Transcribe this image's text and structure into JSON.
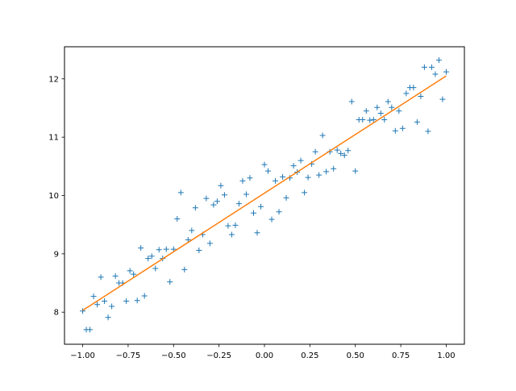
{
  "chart_data": {
    "type": "scatter",
    "title": "",
    "xlabel": "",
    "ylabel": "",
    "xlim": [
      -1.1,
      1.1
    ],
    "ylim": [
      7.45,
      12.55
    ],
    "xticks": [
      -1.0,
      -0.75,
      -0.5,
      -0.25,
      0.0,
      0.25,
      0.5,
      0.75,
      1.0
    ],
    "xtick_labels": [
      "−1.00",
      "−0.75",
      "−0.50",
      "−0.25",
      "0.00",
      "0.25",
      "0.50",
      "0.75",
      "1.00"
    ],
    "yticks": [
      8,
      9,
      10,
      11,
      12
    ],
    "ytick_labels": [
      "8",
      "9",
      "10",
      "11",
      "12"
    ],
    "grid": false,
    "legend": "none",
    "series": [
      {
        "kind": "points",
        "marker": "+",
        "color": "#1f77b4",
        "x": [
          -1.0,
          -0.98,
          -0.96,
          -0.94,
          -0.92,
          -0.9,
          -0.88,
          -0.86,
          -0.84,
          -0.82,
          -0.8,
          -0.78,
          -0.76,
          -0.74,
          -0.72,
          -0.7,
          -0.68,
          -0.66,
          -0.64,
          -0.62,
          -0.6,
          -0.58,
          -0.56,
          -0.54,
          -0.52,
          -0.5,
          -0.48,
          -0.46,
          -0.44,
          -0.42,
          -0.4,
          -0.38,
          -0.36,
          -0.34,
          -0.32,
          -0.3,
          -0.28,
          -0.26,
          -0.24,
          -0.22,
          -0.2,
          -0.18,
          -0.16,
          -0.14,
          -0.12,
          -0.1,
          -0.08,
          -0.06,
          -0.04,
          -0.02,
          0.0,
          0.02,
          0.04,
          0.06,
          0.08,
          0.1,
          0.12,
          0.14,
          0.16,
          0.18,
          0.2,
          0.22,
          0.24,
          0.26,
          0.28,
          0.3,
          0.32,
          0.34,
          0.36,
          0.38,
          0.4,
          0.42,
          0.44,
          0.46,
          0.48,
          0.5,
          0.52,
          0.54,
          0.56,
          0.58,
          0.6,
          0.62,
          0.64,
          0.66,
          0.68,
          0.7,
          0.72,
          0.74,
          0.76,
          0.78,
          0.8,
          0.82,
          0.84,
          0.86,
          0.88,
          0.9,
          0.92,
          0.94,
          0.96,
          0.98,
          1.0
        ],
        "y": [
          8.02,
          7.7,
          7.7,
          8.27,
          8.13,
          8.6,
          8.19,
          7.91,
          8.1,
          8.62,
          8.5,
          8.5,
          8.19,
          8.71,
          8.65,
          8.2,
          9.1,
          8.28,
          8.92,
          8.96,
          8.75,
          9.07,
          8.92,
          9.08,
          8.52,
          9.08,
          9.6,
          10.05,
          8.73,
          9.24,
          9.4,
          9.79,
          9.06,
          9.33,
          9.95,
          9.18,
          9.84,
          9.9,
          10.17,
          10.01,
          9.48,
          9.33,
          9.49,
          9.86,
          10.25,
          10.02,
          10.3,
          9.7,
          9.36,
          9.81,
          10.53,
          10.42,
          9.59,
          10.25,
          9.72,
          10.32,
          9.96,
          10.3,
          10.51,
          10.4,
          10.6,
          10.05,
          10.31,
          10.54,
          10.75,
          10.35,
          11.03,
          10.41,
          10.75,
          10.46,
          10.78,
          10.72,
          10.69,
          10.77,
          11.61,
          10.42,
          11.3,
          11.3,
          11.45,
          11.29,
          11.3,
          11.51,
          11.41,
          11.3,
          11.61,
          11.51,
          11.11,
          11.45,
          11.15,
          11.75,
          11.85,
          11.85,
          11.26,
          11.7,
          12.2,
          11.1,
          12.2,
          12.08,
          12.32,
          11.65,
          12.12
        ]
      },
      {
        "kind": "line",
        "color": "#ff7f0e",
        "x": [
          -1.0,
          1.0
        ],
        "y": [
          8.03,
          12.05
        ]
      }
    ]
  }
}
